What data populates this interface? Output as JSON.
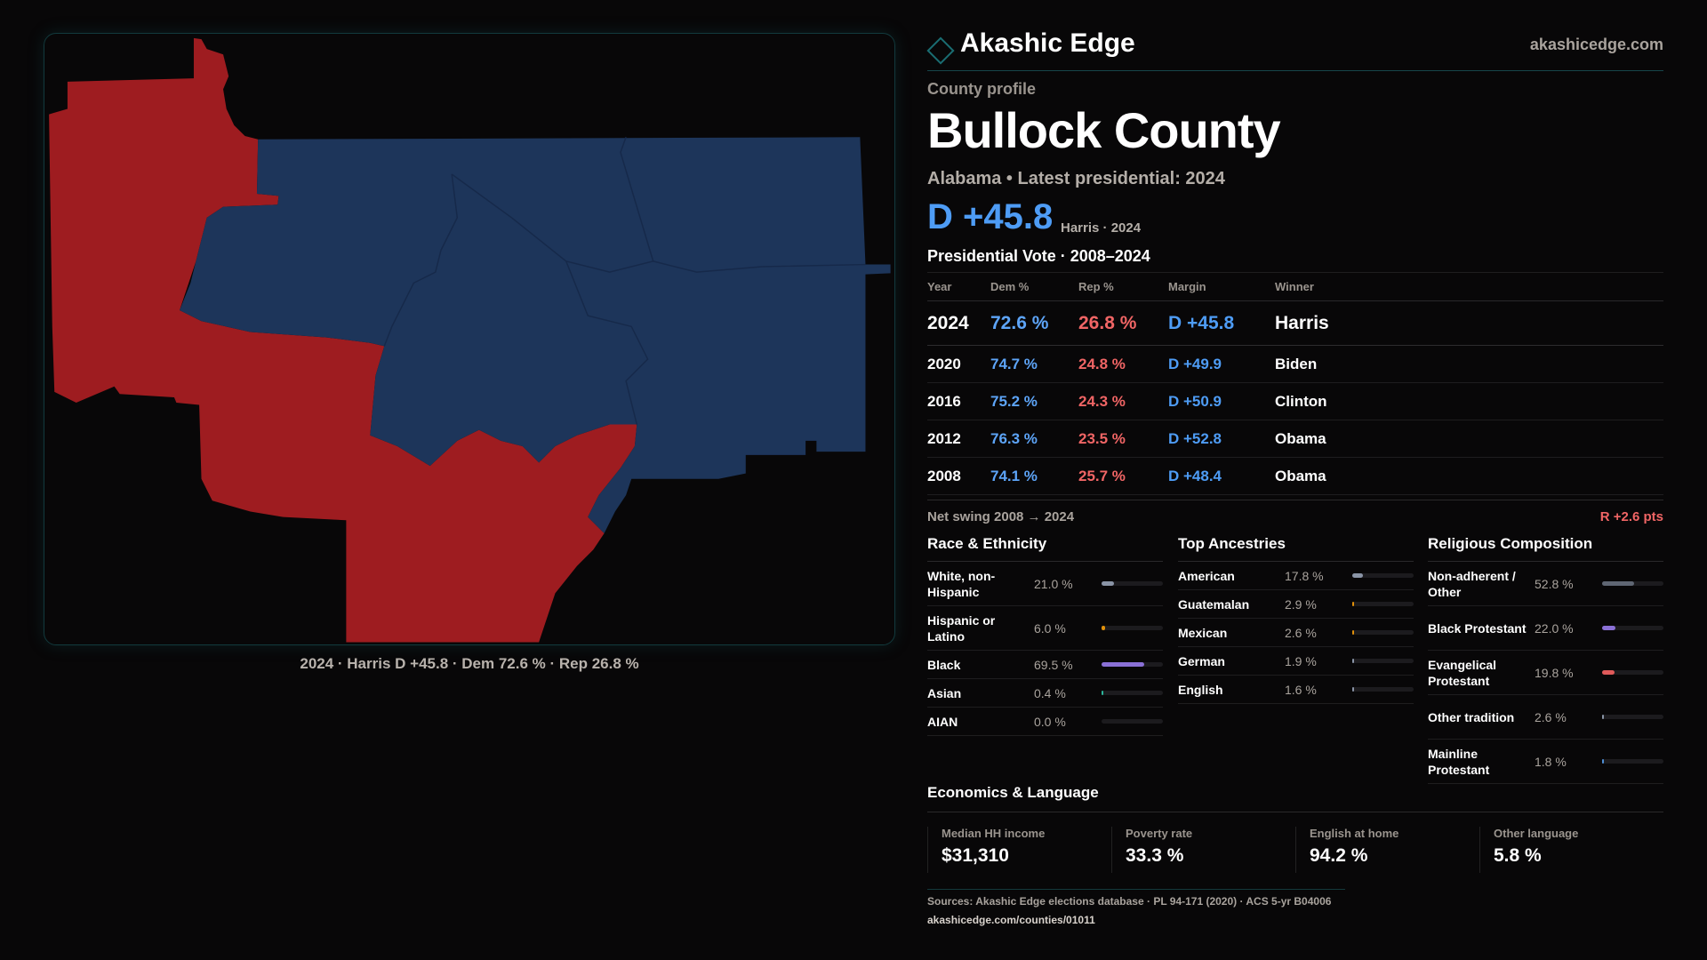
{
  "map": {
    "caption": "2024 · Harris D +45.8 · Dem 72.6 % · Rep 26.8 %",
    "colors": {
      "dem": "#1d355a",
      "rep": "#9e1c20"
    }
  },
  "header": {
    "brand": "Akashic Edge",
    "site": "akashicedge.com"
  },
  "profile": {
    "kicker": "County profile",
    "title": "Bullock County",
    "subtitle": "Alabama • Latest presidential: 2024",
    "margin": "D +45.8",
    "margin_note": "Harris · 2024"
  },
  "votes": {
    "title": "Presidential Vote · 2008–2024",
    "headers": [
      "Year",
      "Dem %",
      "Rep %",
      "Margin",
      "Winner"
    ],
    "rows": [
      {
        "year": "2024",
        "dem": "72.6 %",
        "rep": "26.8 %",
        "margin": "D +45.8",
        "winner": "Harris"
      },
      {
        "year": "2020",
        "dem": "74.7 %",
        "rep": "24.8 %",
        "margin": "D +49.9",
        "winner": "Biden"
      },
      {
        "year": "2016",
        "dem": "75.2 %",
        "rep": "24.3 %",
        "margin": "D +50.9",
        "winner": "Clinton"
      },
      {
        "year": "2012",
        "dem": "76.3 %",
        "rep": "23.5 %",
        "margin": "D +52.8",
        "winner": "Obama"
      },
      {
        "year": "2008",
        "dem": "74.1 %",
        "rep": "25.7 %",
        "margin": "D +48.4",
        "winner": "Obama"
      }
    ],
    "swing_label": "Net swing 2008 → 2024",
    "swing_value": "R +2.6 pts"
  },
  "race": {
    "title": "Race & Ethnicity",
    "items": [
      {
        "label": "White, non-Hispanic",
        "pct": "21.0 %",
        "value": 21.0,
        "color": "#8a94a6"
      },
      {
        "label": "Hispanic or Latino",
        "pct": "6.0 %",
        "value": 6.0,
        "color": "#e0900a"
      },
      {
        "label": "Black",
        "pct": "69.5 %",
        "value": 69.5,
        "color": "#8a70d6"
      },
      {
        "label": "Asian",
        "pct": "0.4 %",
        "value": 0.4,
        "color": "#2bb59a"
      },
      {
        "label": "AIAN",
        "pct": "0.0 %",
        "value": 0.0,
        "color": "#c9714a"
      }
    ]
  },
  "ancestry": {
    "title": "Top Ancestries",
    "items": [
      {
        "label": "American",
        "pct": "17.8 %",
        "value": 17.8,
        "color": "#8a94a6"
      },
      {
        "label": "Guatemalan",
        "pct": "2.9 %",
        "value": 2.9,
        "color": "#e0900a"
      },
      {
        "label": "Mexican",
        "pct": "2.6 %",
        "value": 2.6,
        "color": "#e0900a"
      },
      {
        "label": "German",
        "pct": "1.9 %",
        "value": 1.9,
        "color": "#8a94a6"
      },
      {
        "label": "English",
        "pct": "1.6 %",
        "value": 1.6,
        "color": "#8a94a6"
      }
    ]
  },
  "religion": {
    "title": "Religious Composition",
    "items": [
      {
        "label": "Non-adherent / Other",
        "pct": "52.8 %",
        "value": 52.8,
        "color": "#5f6673"
      },
      {
        "label": "Black Protestant",
        "pct": "22.0 %",
        "value": 22.0,
        "color": "#8a70d6"
      },
      {
        "label": "Evangelical Protestant",
        "pct": "19.8 %",
        "value": 19.8,
        "color": "#e05a5a"
      },
      {
        "label": "Other tradition",
        "pct": "2.6 %",
        "value": 2.6,
        "color": "#8a94a6"
      },
      {
        "label": "Mainline Protestant",
        "pct": "1.8 %",
        "value": 1.8,
        "color": "#4e8fd6"
      }
    ]
  },
  "economics": {
    "title": "Economics & Language",
    "stats": [
      {
        "label": "Median HH income",
        "value": "$31,310"
      },
      {
        "label": "Poverty rate",
        "value": "33.3 %"
      },
      {
        "label": "English at home",
        "value": "94.2 %"
      },
      {
        "label": "Other language",
        "value": "5.8 %"
      }
    ]
  },
  "footer": {
    "sources": "Sources: Akashic Edge elections database · PL 94-171 (2020) · ACS 5-yr B04006",
    "url": "akashicedge.com/counties/01011"
  }
}
